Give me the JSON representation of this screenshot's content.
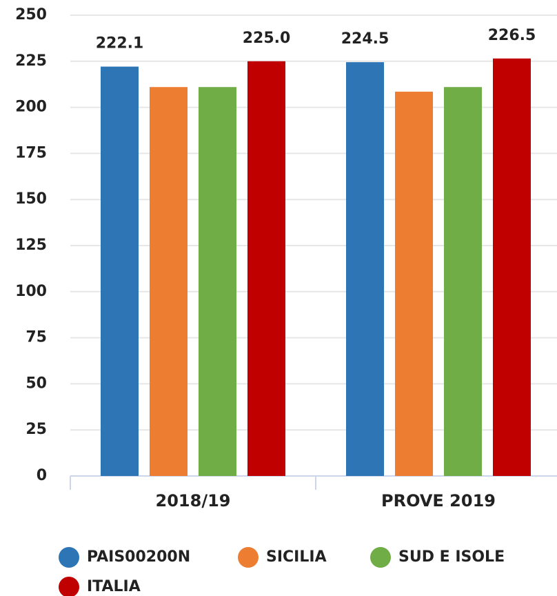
{
  "chart_data": {
    "type": "bar",
    "categories": [
      "2018/19",
      "PROVE 2019"
    ],
    "series": [
      {
        "name": "PAIS00200N",
        "color": "#2e75b6",
        "values": [
          222.1,
          224.5
        ],
        "value_labels": [
          "222.1",
          "224.5"
        ]
      },
      {
        "name": "SICILIA",
        "color": "#ed7d31",
        "values": [
          211,
          208.5
        ]
      },
      {
        "name": "SUD E ISOLE",
        "color": "#70ad47",
        "values": [
          211,
          211
        ]
      },
      {
        "name": "ITALIA",
        "color": "#c00000",
        "values": [
          225,
          226.5
        ],
        "value_labels": [
          "225.0",
          "226.5"
        ]
      }
    ],
    "ylim": [
      0,
      250
    ],
    "yticks": [
      0,
      25,
      50,
      75,
      100,
      125,
      150,
      175,
      200,
      225,
      250
    ],
    "grid": true
  }
}
